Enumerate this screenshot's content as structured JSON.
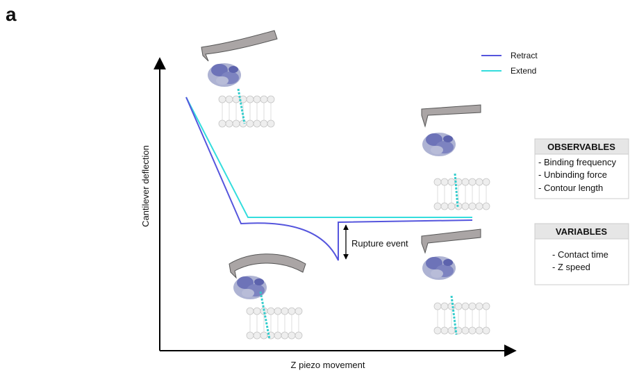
{
  "panel_label": "a",
  "axes": {
    "y_label": "Cantilever deflection",
    "x_label": "Z piezo movement"
  },
  "legend": [
    {
      "label": "Retract"
    },
    {
      "label": "Extend"
    }
  ],
  "annotation": "Rupture event",
  "boxes": [
    {
      "title": "OBSERVABLES",
      "items": [
        "- Binding frequency",
        "- Unbinding force",
        "- Contour length"
      ]
    },
    {
      "title": "VARIABLES",
      "items": [
        "- Contact time",
        "- Z speed"
      ]
    }
  ]
}
